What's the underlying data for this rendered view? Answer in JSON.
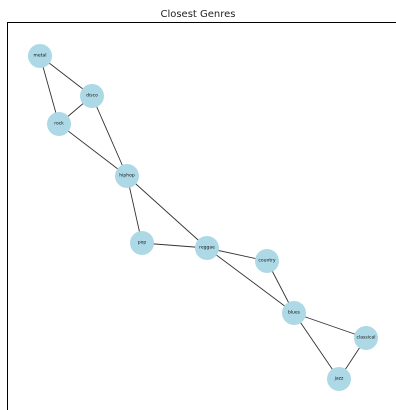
{
  "title": "Closest Genres",
  "colors": {
    "node": "#add8e6",
    "edge": "#333333",
    "axes": "#000000"
  },
  "nodes": [
    {
      "id": "metal",
      "label": "metal"
    },
    {
      "id": "disco",
      "label": "disco"
    },
    {
      "id": "rock",
      "label": "rock"
    },
    {
      "id": "hiphop",
      "label": "hiphop"
    },
    {
      "id": "pop",
      "label": "pop"
    },
    {
      "id": "reggae",
      "label": "reggae"
    },
    {
      "id": "country",
      "label": "country"
    },
    {
      "id": "blues",
      "label": "blues"
    },
    {
      "id": "classical",
      "label": "classical"
    },
    {
      "id": "jazz",
      "label": "jazz"
    }
  ],
  "edges": [
    [
      "metal",
      "disco"
    ],
    [
      "metal",
      "rock"
    ],
    [
      "disco",
      "rock"
    ],
    [
      "disco",
      "hiphop"
    ],
    [
      "rock",
      "hiphop"
    ],
    [
      "hiphop",
      "pop"
    ],
    [
      "hiphop",
      "reggae"
    ],
    [
      "pop",
      "reggae"
    ],
    [
      "reggae",
      "country"
    ],
    [
      "reggae",
      "blues"
    ],
    [
      "country",
      "blues"
    ],
    [
      "blues",
      "classical"
    ],
    [
      "blues",
      "jazz"
    ],
    [
      "classical",
      "jazz"
    ]
  ]
}
